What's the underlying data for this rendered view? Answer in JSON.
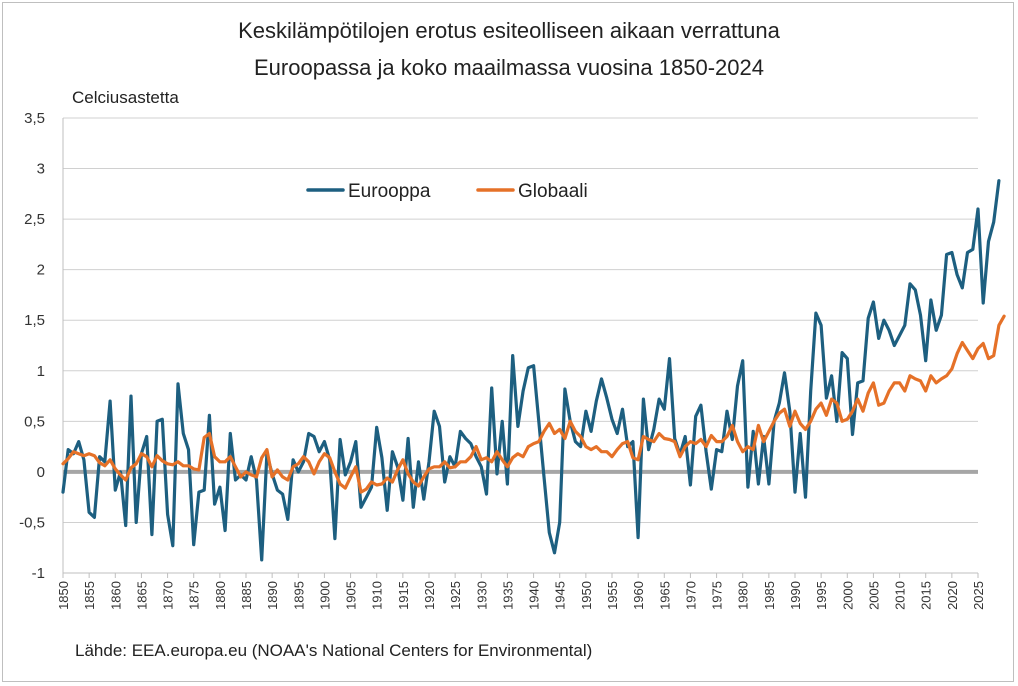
{
  "title_line1": "Keskilämpötilojen erotus esiteolliseen aikaan verrattuna",
  "title_line2": "Euroopassa ja koko maailmassa vuosina 1850-2024",
  "source": "Lähde: EEA.europa.eu  (NOAA's National Centers for Environmental)",
  "colors": {
    "europe": "#1d5f80",
    "global": "#e57128",
    "zero": "#a6a6a6",
    "grid": "#d0d0d0"
  },
  "chart_data": {
    "type": "line",
    "title": "Keskilämpötilojen erotus esiteolliseen aikaan verrattuna Euroopassa ja koko maailmassa vuosina 1850-2024",
    "ylabel": "Celciusastetta",
    "xlabel": "",
    "ylim": [
      -1,
      3.5
    ],
    "xlim": [
      1850,
      2025
    ],
    "y_ticks": [
      -1,
      -0.5,
      0,
      0.5,
      1,
      1.5,
      2,
      2.5,
      3,
      3.5
    ],
    "y_tick_labels": [
      "-1",
      "-0,5",
      "0",
      "0,5",
      "1",
      "1,5",
      "2",
      "2,5",
      "3",
      "3,5"
    ],
    "x_ticks": [
      1850,
      1855,
      1860,
      1865,
      1870,
      1875,
      1880,
      1885,
      1890,
      1895,
      1900,
      1905,
      1910,
      1915,
      1920,
      1925,
      1930,
      1935,
      1940,
      1945,
      1950,
      1955,
      1960,
      1965,
      1970,
      1975,
      1980,
      1985,
      1990,
      1995,
      2000,
      2005,
      2010,
      2015,
      2020,
      2025
    ],
    "legend": "top-center",
    "x_start": 1850,
    "series": [
      {
        "name": "Eurooppa",
        "values": [
          -0.2,
          0.22,
          0.18,
          0.3,
          0.12,
          -0.4,
          -0.45,
          0.15,
          0.1,
          0.7,
          -0.18,
          0,
          -0.53,
          0.75,
          -0.5,
          0.18,
          0.35,
          -0.62,
          0.5,
          0.52,
          -0.42,
          -0.73,
          0.87,
          0.38,
          0.22,
          -0.72,
          -0.2,
          -0.18,
          0.56,
          -0.32,
          -0.15,
          -0.58,
          0.38,
          -0.08,
          -0.03,
          -0.08,
          0.15,
          -0.08,
          -0.87,
          0.18,
          -0.02,
          -0.18,
          -0.22,
          -0.47,
          0.12,
          0,
          0.1,
          0.38,
          0.35,
          0.2,
          0.3,
          0.12,
          -0.66,
          0.32,
          -0.03,
          0.1,
          0.3,
          -0.35,
          -0.25,
          -0.15,
          0.44,
          0.14,
          -0.38,
          0.2,
          0.05,
          -0.28,
          0.33,
          -0.35,
          0.1,
          -0.27,
          0.1,
          0.6,
          0.45,
          -0.1,
          0.15,
          0.05,
          0.4,
          0.33,
          0.28,
          0.15,
          0.05,
          -0.22,
          0.83,
          -0.02,
          0.5,
          -0.12,
          1.15,
          0.45,
          0.8,
          1.03,
          1.05,
          0.5,
          -0.05,
          -0.6,
          -0.8,
          -0.5,
          0.82,
          0.5,
          0.3,
          0.25,
          0.6,
          0.4,
          0.7,
          0.92,
          0.73,
          0.52,
          0.38,
          0.62,
          0.25,
          0.3,
          -0.65,
          0.72,
          0.22,
          0.42,
          0.72,
          0.62,
          1.12,
          0.33,
          0.17,
          0.35,
          -0.13,
          0.55,
          0.66,
          0.2,
          -0.17,
          0.22,
          0.2,
          0.6,
          0.32,
          0.85,
          1.1,
          -0.15,
          0.4,
          -0.12,
          0.35,
          -0.12,
          0.5,
          0.68,
          0.98,
          0.6,
          -0.2,
          0.38,
          -0.25,
          0.8,
          1.57,
          1.45,
          0.73,
          0.95,
          0.5,
          1.18,
          1.12,
          0.37,
          0.88,
          0.9,
          1.52,
          1.68,
          1.32,
          1.5,
          1.4,
          1.25,
          1.35,
          1.45,
          1.86,
          1.8,
          1.55,
          1.1,
          1.7,
          1.4,
          1.55,
          2.15,
          2.17,
          1.95,
          1.82,
          2.17,
          2.2,
          2.6,
          1.67,
          2.28,
          2.47,
          2.88
        ]
      },
      {
        "name": "Globaali",
        "values": [
          0.08,
          0.13,
          0.2,
          0.18,
          0.16,
          0.18,
          0.16,
          0.09,
          0.06,
          0.12,
          0.03,
          -0.03,
          -0.08,
          0.04,
          0.08,
          0.18,
          0.15,
          0.05,
          0.16,
          0.11,
          0.08,
          0.07,
          0.1,
          0.06,
          0.06,
          0.03,
          0.02,
          0.34,
          0.38,
          0.15,
          0.1,
          0.1,
          0.15,
          0.05,
          -0.05,
          0,
          -0.03,
          -0.05,
          0.14,
          0.22,
          -0.05,
          0.02,
          -0.05,
          -0.08,
          0.05,
          0.08,
          0.15,
          0.1,
          -0.02,
          0.1,
          0.18,
          0.14,
          0,
          -0.12,
          -0.16,
          -0.05,
          0.05,
          -0.2,
          -0.17,
          -0.1,
          -0.13,
          -0.12,
          -0.06,
          -0.1,
          0.02,
          0.12,
          -0.02,
          -0.1,
          -0.14,
          -0.05,
          0.03,
          0.05,
          0.05,
          0.1,
          0.04,
          0.05,
          0.1,
          0.1,
          0.15,
          0.25,
          0.12,
          0.14,
          0.1,
          0.2,
          0.12,
          0.05,
          0.14,
          0.18,
          0.15,
          0.25,
          0.28,
          0.3,
          0.4,
          0.48,
          0.38,
          0.42,
          0.33,
          0.5,
          0.4,
          0.35,
          0.25,
          0.22,
          0.25,
          0.2,
          0.2,
          0.15,
          0.22,
          0.28,
          0.3,
          0.14,
          0.12,
          0.35,
          0.32,
          0.3,
          0.38,
          0.33,
          0.32,
          0.3,
          0.15,
          0.25,
          0.3,
          0.28,
          0.32,
          0.25,
          0.36,
          0.3,
          0.3,
          0.35,
          0.46,
          0.3,
          0.2,
          0.25,
          0.22,
          0.46,
          0.3,
          0.4,
          0.5,
          0.58,
          0.62,
          0.45,
          0.6,
          0.48,
          0.42,
          0.5,
          0.62,
          0.68,
          0.56,
          0.72,
          0.68,
          0.5,
          0.52,
          0.6,
          0.72,
          0.6,
          0.78,
          0.88,
          0.66,
          0.68,
          0.8,
          0.88,
          0.88,
          0.8,
          0.95,
          0.92,
          0.9,
          0.8,
          0.95,
          0.88,
          0.92,
          0.95,
          1.02,
          1.17,
          1.28,
          1.2,
          1.12,
          1.22,
          1.27,
          1.12,
          1.15,
          1.45,
          1.54
        ]
      }
    ]
  }
}
